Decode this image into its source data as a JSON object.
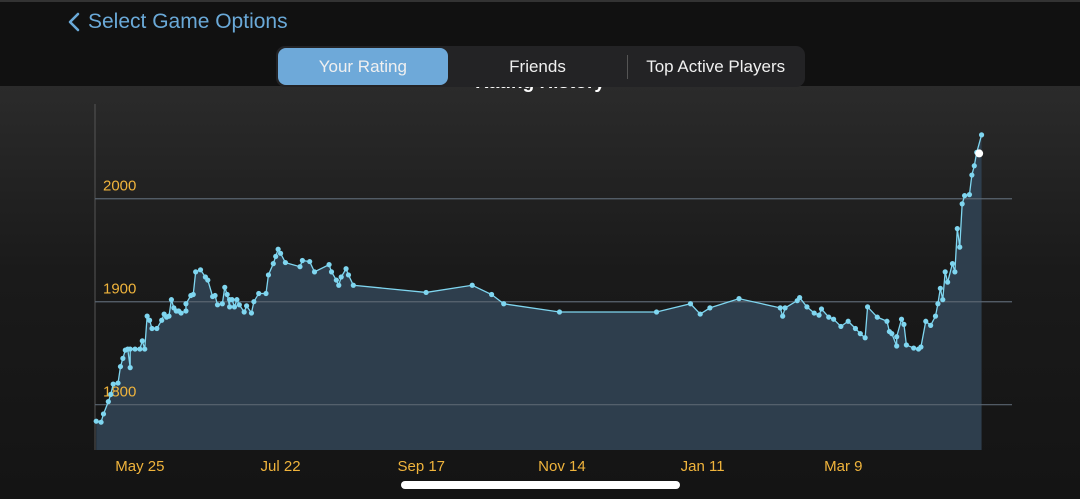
{
  "nav": {
    "back_label": "Select Game Options"
  },
  "tabs": [
    {
      "label": "Your Rating",
      "active": true
    },
    {
      "label": "Friends",
      "active": false
    },
    {
      "label": "Top Active Players",
      "active": false
    }
  ],
  "chart_data": {
    "type": "line",
    "title": "Rating History",
    "x_unit": "days since May 25",
    "xlim": [
      -18.5,
      348
    ],
    "ylim": [
      1756,
      2092
    ],
    "y_ticks": [
      1800,
      1900,
      2000
    ],
    "x_ticks": [
      {
        "day": 0,
        "label": "May 25"
      },
      {
        "day": 58,
        "label": "Jul 22"
      },
      {
        "day": 116,
        "label": "Sep 17"
      },
      {
        "day": 174,
        "label": "Nov 14"
      },
      {
        "day": 232,
        "label": "Jan 11"
      },
      {
        "day": 290,
        "label": "Mar 9"
      }
    ],
    "grid": true,
    "colors": {
      "line": "#7fd6f0",
      "fill": "#2f4050",
      "tick": "#f0b43c",
      "grid": "#5a6570",
      "highlight": "#ffffff"
    },
    "highlight_point": [
      346,
      2044
    ],
    "points": [
      [
        -18,
        1784
      ],
      [
        -16,
        1783
      ],
      [
        -15,
        1791
      ],
      [
        -13,
        1803
      ],
      [
        -12,
        1810
      ],
      [
        -11,
        1820
      ],
      [
        -9,
        1821
      ],
      [
        -8,
        1837
      ],
      [
        -7,
        1845
      ],
      [
        -6,
        1853
      ],
      [
        -5,
        1854
      ],
      [
        -4,
        1836
      ],
      [
        -4,
        1854
      ],
      [
        -2,
        1854
      ],
      [
        0,
        1854
      ],
      [
        1,
        1862
      ],
      [
        2,
        1854
      ],
      [
        3,
        1886
      ],
      [
        4,
        1882
      ],
      [
        5,
        1874
      ],
      [
        7,
        1874
      ],
      [
        9,
        1882
      ],
      [
        10,
        1888
      ],
      [
        11,
        1885
      ],
      [
        12,
        1886
      ],
      [
        13,
        1902
      ],
      [
        14,
        1894
      ],
      [
        15,
        1891
      ],
      [
        16,
        1891
      ],
      [
        17,
        1889
      ],
      [
        19,
        1891
      ],
      [
        19,
        1898
      ],
      [
        21,
        1906
      ],
      [
        22,
        1907
      ],
      [
        23,
        1929
      ],
      [
        25,
        1931
      ],
      [
        27,
        1924
      ],
      [
        28,
        1921
      ],
      [
        30,
        1905
      ],
      [
        31,
        1906
      ],
      [
        32,
        1897
      ],
      [
        34,
        1898
      ],
      [
        35,
        1914
      ],
      [
        36,
        1907
      ],
      [
        37,
        1895
      ],
      [
        37,
        1902
      ],
      [
        38,
        1902
      ],
      [
        39,
        1895
      ],
      [
        40,
        1902
      ],
      [
        41,
        1897
      ],
      [
        43,
        1890
      ],
      [
        44,
        1896
      ],
      [
        46,
        1889
      ],
      [
        47,
        1900
      ],
      [
        49,
        1908
      ],
      [
        52,
        1908
      ],
      [
        53,
        1926
      ],
      [
        55,
        1937
      ],
      [
        56,
        1944
      ],
      [
        57,
        1951
      ],
      [
        58,
        1947
      ],
      [
        60,
        1938
      ],
      [
        66,
        1934
      ],
      [
        67,
        1940
      ],
      [
        70,
        1939
      ],
      [
        72,
        1929
      ],
      [
        78,
        1936
      ],
      [
        79,
        1929
      ],
      [
        81,
        1921
      ],
      [
        82,
        1916
      ],
      [
        83,
        1924
      ],
      [
        85,
        1932
      ],
      [
        86,
        1926
      ],
      [
        88,
        1916
      ],
      [
        118,
        1909
      ],
      [
        137,
        1916
      ],
      [
        145,
        1907
      ],
      [
        150,
        1898
      ],
      [
        173,
        1890
      ],
      [
        213,
        1890
      ],
      [
        227,
        1898
      ],
      [
        231,
        1888
      ],
      [
        235,
        1894
      ],
      [
        247,
        1903
      ],
      [
        264,
        1894
      ],
      [
        265,
        1886
      ],
      [
        266,
        1894
      ],
      [
        271,
        1901
      ],
      [
        272,
        1904
      ],
      [
        275,
        1895
      ],
      [
        278,
        1889
      ],
      [
        280,
        1887
      ],
      [
        281,
        1893
      ],
      [
        284,
        1885
      ],
      [
        286,
        1883
      ],
      [
        289,
        1876
      ],
      [
        292,
        1881
      ],
      [
        295,
        1874
      ],
      [
        297,
        1869
      ],
      [
        299,
        1865
      ],
      [
        300,
        1895
      ],
      [
        304,
        1885
      ],
      [
        308,
        1881
      ],
      [
        309,
        1871
      ],
      [
        310,
        1869
      ],
      [
        312,
        1857
      ],
      [
        312,
        1866
      ],
      [
        314,
        1883
      ],
      [
        315,
        1878
      ],
      [
        316,
        1858
      ],
      [
        319,
        1855
      ],
      [
        321,
        1854
      ],
      [
        322,
        1856
      ],
      [
        324,
        1881
      ],
      [
        326,
        1877
      ],
      [
        328,
        1886
      ],
      [
        329,
        1898
      ],
      [
        330,
        1913
      ],
      [
        331,
        1902
      ],
      [
        332,
        1929
      ],
      [
        333,
        1919
      ],
      [
        335,
        1937
      ],
      [
        336,
        1929
      ],
      [
        337,
        1971
      ],
      [
        338,
        1953
      ],
      [
        339,
        1995
      ],
      [
        340,
        2003
      ],
      [
        342,
        2004
      ],
      [
        343,
        2023
      ],
      [
        344,
        2032
      ],
      [
        345,
        2045
      ],
      [
        347,
        2062
      ]
    ]
  }
}
